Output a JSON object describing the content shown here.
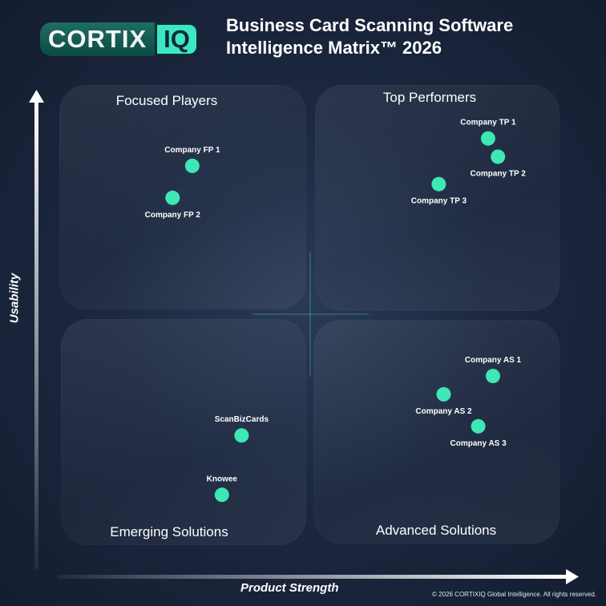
{
  "brand": {
    "word": "CORTIX",
    "mark": "IQ"
  },
  "header": {
    "title_line1": "Business Card Scanning Software",
    "title_line2": "Intelligence Matrix™ 2026"
  },
  "quadrants": {
    "top_left": "Focused Players",
    "top_right": "Top Performers",
    "bottom_left": "Emerging Solutions",
    "bottom_right": "Advanced Solutions"
  },
  "axes": {
    "x_label": "Product Strength",
    "y_label": "Usability"
  },
  "footer": {
    "copyright": "© 2026 CORTIXIQ Global Intelligence. All rights reserved."
  },
  "colors": {
    "point": "#3ee7b4",
    "background": "#1c2840",
    "crosshair": "#3ee7b4"
  },
  "chart_data": {
    "type": "scatter",
    "xlim": [
      0,
      100
    ],
    "ylim": [
      0,
      100
    ],
    "grid": false,
    "points": [
      {
        "label": "Company FP 1",
        "x": 26,
        "y": 83,
        "label_pos": "above"
      },
      {
        "label": "Company FP 2",
        "x": 22,
        "y": 76,
        "label_pos": "below"
      },
      {
        "label": "Company TP 1",
        "x": 86,
        "y": 89,
        "label_pos": "above"
      },
      {
        "label": "Company TP 2",
        "x": 88,
        "y": 85,
        "label_pos": "below"
      },
      {
        "label": "Company TP 3",
        "x": 76,
        "y": 79,
        "label_pos": "below"
      },
      {
        "label": "Company AS 1",
        "x": 87,
        "y": 37,
        "label_pos": "above"
      },
      {
        "label": "Company AS 2",
        "x": 77,
        "y": 33,
        "label_pos": "below"
      },
      {
        "label": "Company AS 3",
        "x": 84,
        "y": 26,
        "label_pos": "below"
      },
      {
        "label": "ScanBizCards",
        "x": 36,
        "y": 24,
        "label_pos": "above"
      },
      {
        "label": "Knowee",
        "x": 32,
        "y": 11,
        "label_pos": "above"
      }
    ]
  }
}
